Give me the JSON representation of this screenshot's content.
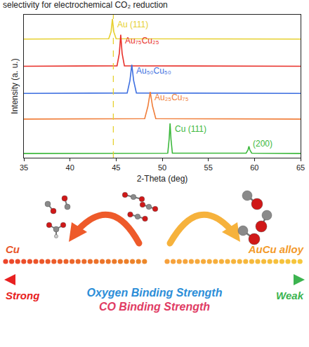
{
  "header": {
    "text": "selectivity for electrochemical CO₂ reduction"
  },
  "chart_data": {
    "type": "line",
    "xlabel": "2-Theta (deg)",
    "ylabel": "Intensity (a. u.)",
    "xlim": [
      35,
      65
    ],
    "xticks": [
      35,
      40,
      45,
      50,
      55,
      60,
      65
    ],
    "ylim": [
      0,
      10
    ],
    "yticks": [],
    "tick_labels": "x",
    "grid": false,
    "series": [
      {
        "name": "Au (111)",
        "color": "#e6d030",
        "x": [
          35,
          44.2,
          44.45,
          44.6,
          44.75,
          45.0,
          65
        ],
        "values": [
          8.3,
          8.32,
          8.8,
          9.7,
          8.8,
          8.32,
          8.3
        ]
      },
      {
        "name": "Au₇₅Cu₂₅",
        "color": "#e8302a",
        "x": [
          35,
          45.1,
          45.35,
          45.5,
          45.65,
          45.9,
          65
        ],
        "values": [
          6.4,
          6.43,
          7.3,
          8.6,
          7.3,
          6.43,
          6.4
        ]
      },
      {
        "name": "Au₅₀Cu₅₀",
        "color": "#3d6fe0",
        "x": [
          35,
          46.2,
          46.5,
          46.7,
          46.9,
          47.2,
          65
        ],
        "values": [
          4.5,
          4.53,
          5.4,
          6.5,
          5.4,
          4.53,
          4.5
        ]
      },
      {
        "name": "Au₂₅Cu₇₅",
        "color": "#f07e3a",
        "x": [
          35,
          48.1,
          48.45,
          48.7,
          48.95,
          49.3,
          65
        ],
        "values": [
          2.7,
          2.73,
          3.6,
          4.6,
          3.6,
          2.73,
          2.7
        ]
      },
      {
        "name": "Cu (111)",
        "color": "#3cb83c",
        "x": [
          35,
          50.6,
          50.75,
          50.85,
          50.95,
          51.1,
          59.1,
          59.3,
          59.4,
          59.5,
          59.7,
          65
        ],
        "values": [
          0.3,
          0.32,
          1.3,
          2.4,
          1.3,
          0.32,
          0.32,
          0.55,
          0.8,
          0.55,
          0.32,
          0.3
        ]
      }
    ],
    "annotations": [
      {
        "text": "Au (111)",
        "x": 45.0,
        "y": 9.3,
        "color": "#e6d030"
      },
      {
        "text": "Au₇₅Cu₂₅",
        "x": 45.8,
        "y": 8.2,
        "color": "#e8302a"
      },
      {
        "text": "Au₅₀Cu₅₀",
        "x": 47.0,
        "y": 6.1,
        "color": "#3d6fe0"
      },
      {
        "text": "Au₂₅Cu₇₅",
        "x": 49.0,
        "y": 4.2,
        "color": "#f07e3a"
      },
      {
        "text": "Cu (111)",
        "x": 51.2,
        "y": 2.0,
        "color": "#3cb83c"
      },
      {
        "text": "(200)",
        "x": 59.7,
        "y": 1.0,
        "color": "#3cb83c"
      }
    ],
    "reference_line": {
      "x": 44.7,
      "color": "#e6d030",
      "line_style": "dashed"
    }
  },
  "diagram": {
    "left_label": "Cu",
    "right_label": "AuCu alloy",
    "scale_left": "Strong",
    "scale_right": "Weak",
    "scale_titles": [
      "Oxygen Binding Strength",
      "CO Binding Strength"
    ]
  }
}
